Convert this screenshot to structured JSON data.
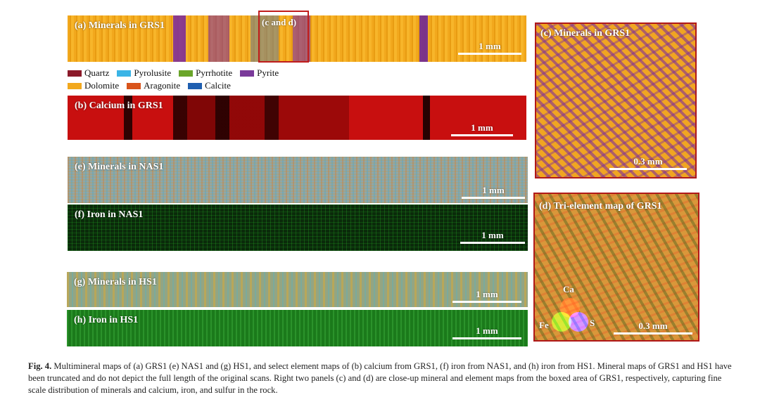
{
  "panels": {
    "a": {
      "label": "(a) Minerals in GRS1",
      "scale": "1 mm"
    },
    "b": {
      "label": "(b) Calcium in GRS1",
      "scale": "1 mm"
    },
    "e": {
      "label": "(e) Minerals in NAS1",
      "scale": "1 mm"
    },
    "f": {
      "label": "(f) Iron in NAS1",
      "scale": "1 mm"
    },
    "g": {
      "label": "(g) Minerals in HS1",
      "scale": "1 mm"
    },
    "h": {
      "label": "(h) Iron in HS1",
      "scale": "1 mm"
    },
    "c": {
      "label": "(c) Minerals in GRS1",
      "scale": "0.3 mm"
    },
    "d": {
      "label": "(d) Tri-element map of GRS1",
      "scale": "0.3 mm"
    }
  },
  "zoom_box_label": "(c and d)",
  "legend": {
    "row1": [
      {
        "name": "Quartz",
        "color": "#8b1a2a"
      },
      {
        "name": "Pyrolusite",
        "color": "#3ab4e6"
      },
      {
        "name": "Pyrrhotite",
        "color": "#6aa52a"
      },
      {
        "name": "Pyrite",
        "color": "#7a3a9a"
      }
    ],
    "row2": [
      {
        "name": "Dolomite",
        "color": "#f2a81d"
      },
      {
        "name": "Aragonite",
        "color": "#d9541b"
      },
      {
        "name": "Calcite",
        "color": "#1f5fb0"
      }
    ]
  },
  "tri_element": {
    "ca": {
      "label": "Ca",
      "color": "#ff0000"
    },
    "fe": {
      "label": "Fe",
      "color": "#00cc00"
    },
    "s": {
      "label": "S",
      "color": "#0000ff"
    }
  },
  "caption": {
    "fig": "Fig. 4.",
    "text": " Multimineral maps of (a) GRS1 (e) NAS1 and (g) HS1, and select element maps of (b) calcium from GRS1, (f) iron from NAS1, and (h) iron from HS1. Mineral maps of GRS1 and HS1 have been truncated and do not depict the full length of the original scans. Right two panels (c) and (d) are close-up mineral and element maps from the boxed area of GRS1, respectively, capturing fine scale distribution of minerals and calcium, iron, and sulfur in the rock."
  }
}
